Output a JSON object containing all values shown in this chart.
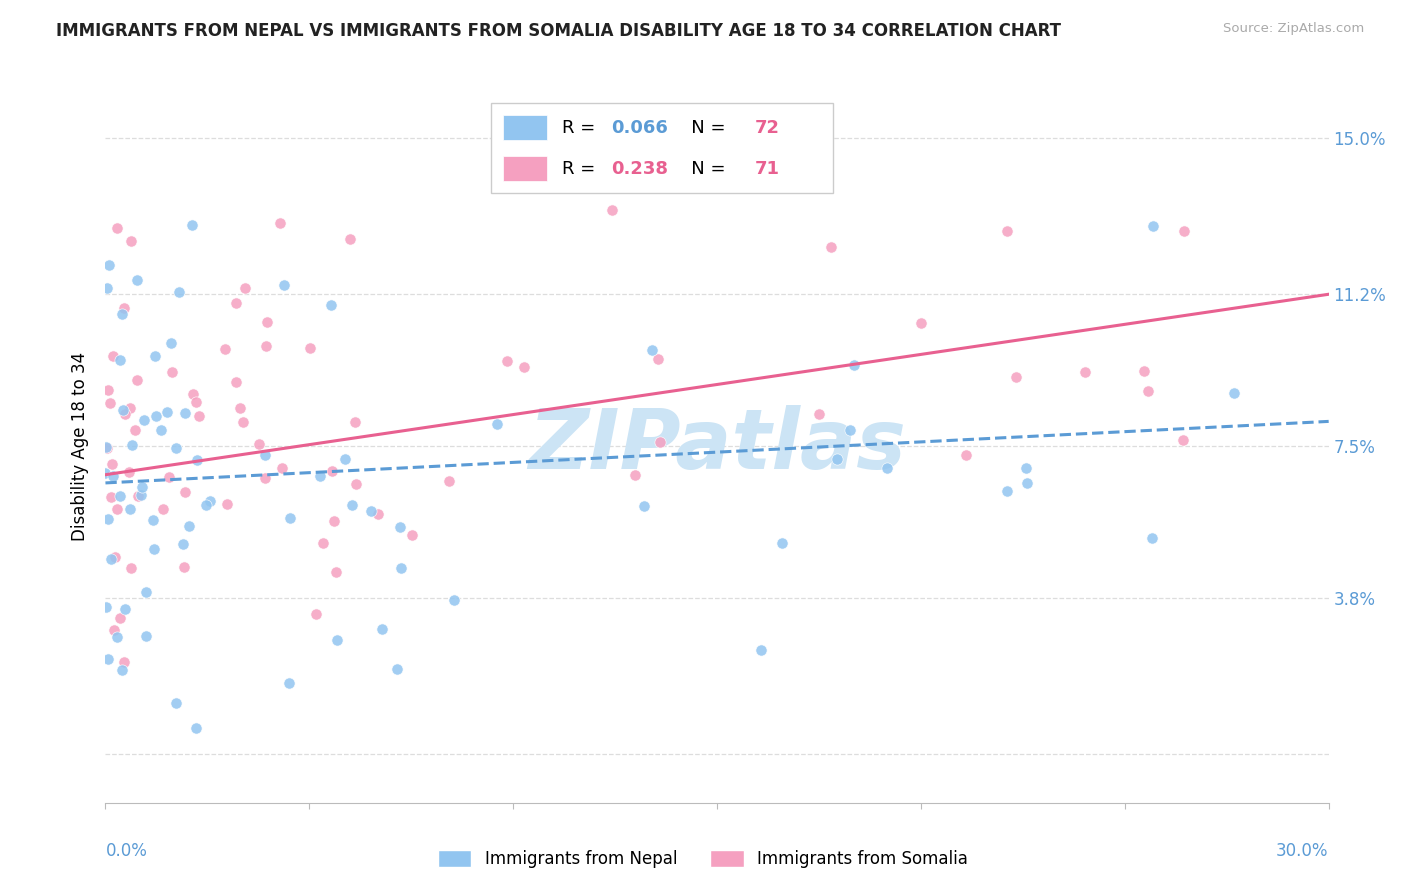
{
  "title": "IMMIGRANTS FROM NEPAL VS IMMIGRANTS FROM SOMALIA DISABILITY AGE 18 TO 34 CORRELATION CHART",
  "source": "Source: ZipAtlas.com",
  "ylabel": "Disability Age 18 to 34",
  "x_min": 0.0,
  "x_max": 0.3,
  "y_min": -0.012,
  "y_max": 0.162,
  "nepal_color": "#92c5f0",
  "nepal_line_color": "#5b9bd5",
  "somalia_color": "#f5a0c0",
  "somalia_line_color": "#e86090",
  "nepal_R": 0.066,
  "nepal_N": 72,
  "somalia_R": 0.238,
  "somalia_N": 71,
  "nepal_trend": [
    0.0,
    0.3,
    0.066,
    0.081
  ],
  "somalia_trend": [
    0.0,
    0.3,
    0.068,
    0.112
  ],
  "y_tick_positions": [
    0.0,
    0.038,
    0.075,
    0.112,
    0.15
  ],
  "y_tick_labels": [
    "",
    "3.8%",
    "7.5%",
    "11.2%",
    "15.0%"
  ],
  "background_color": "#ffffff",
  "grid_color": "#dddddd",
  "axis_label_color": "#5b9bd5",
  "watermark_text": "ZIPatlas",
  "watermark_color": "#cce4f5",
  "legend_labels": [
    "Immigrants from Nepal",
    "Immigrants from Somalia"
  ],
  "legend_R_color_nepal": "#5b9bd5",
  "legend_N_color_nepal": "#e86090",
  "legend_R_color_somalia": "#e86090",
  "legend_N_color_somalia": "#e86090"
}
